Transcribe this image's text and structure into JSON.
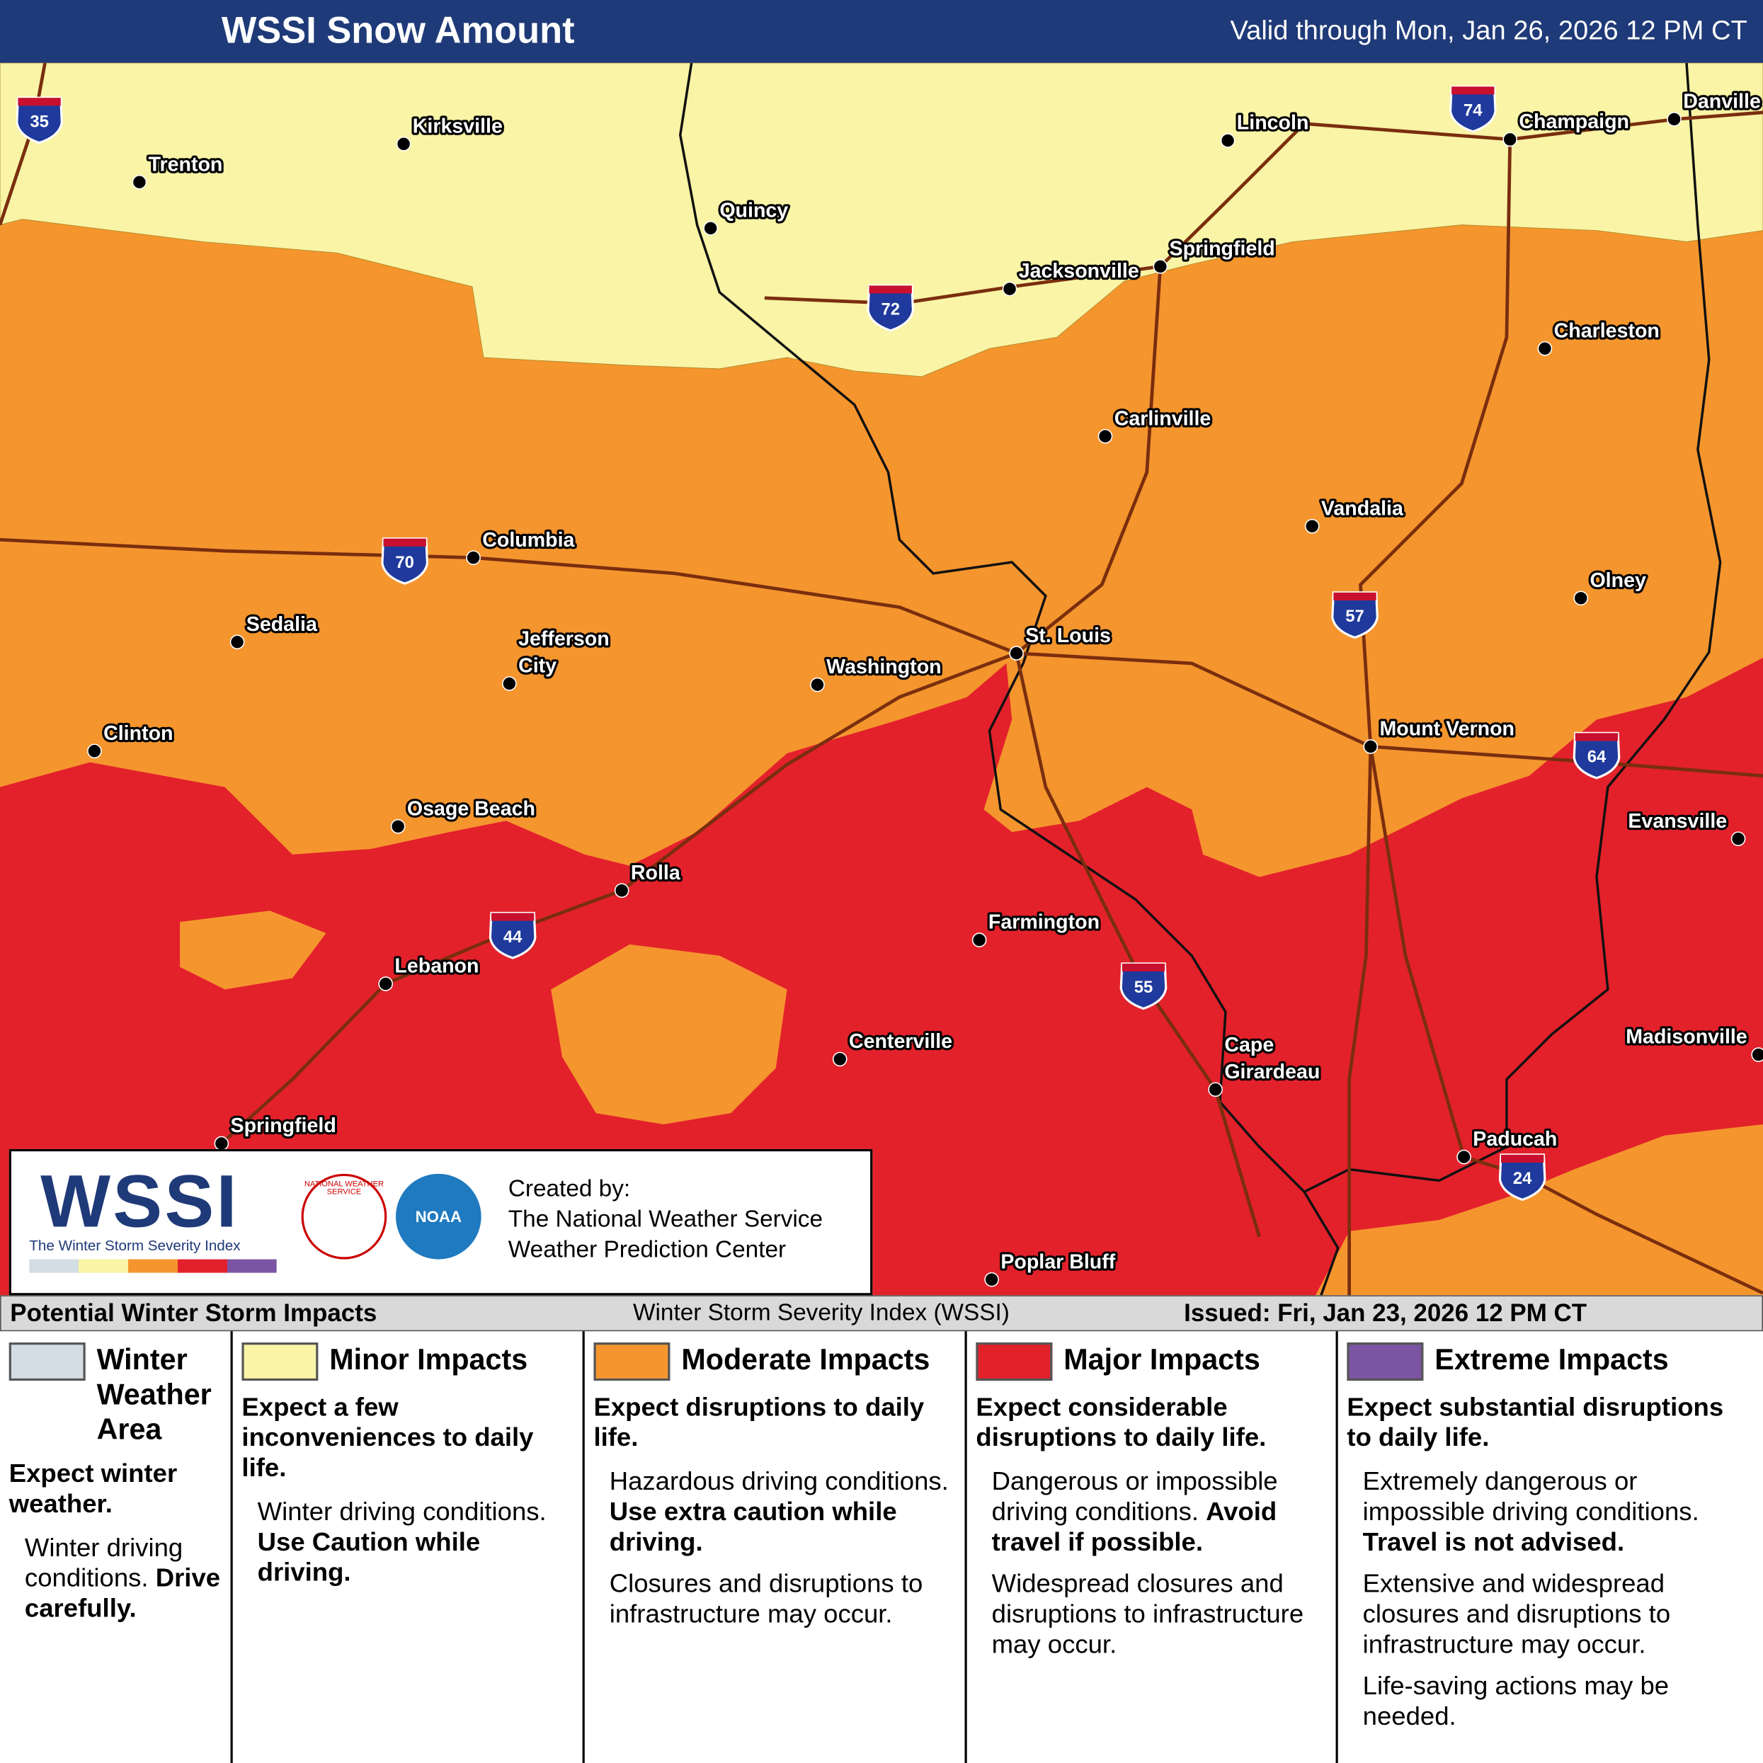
{
  "header": {
    "title": "WSSI Snow Amount",
    "valid": "Valid through Mon, Jan 26, 2026 12 PM CT"
  },
  "map": {
    "cities": [
      {
        "name": [
          "Trenton"
        ]
      },
      {
        "name": [
          "Kirksville"
        ]
      },
      {
        "name": [
          "Quincy"
        ]
      },
      {
        "name": [
          "Lincoln"
        ]
      },
      {
        "name": [
          "Champaign"
        ]
      },
      {
        "name": [
          "Danville"
        ]
      },
      {
        "name": [
          "Jacksonville"
        ]
      },
      {
        "name": [
          "Springfield"
        ]
      },
      {
        "name": [
          "Charleston"
        ]
      },
      {
        "name": [
          "Carlinville"
        ]
      },
      {
        "name": [
          "Vandalia"
        ]
      },
      {
        "name": [
          "Columbia"
        ]
      },
      {
        "name": [
          "Olney"
        ]
      },
      {
        "name": [
          "Sedalia"
        ]
      },
      {
        "name": [
          "Jefferson",
          "City"
        ]
      },
      {
        "name": [
          "St. Louis"
        ]
      },
      {
        "name": [
          "Washington"
        ]
      },
      {
        "name": [
          "Mount Vernon"
        ]
      },
      {
        "name": [
          "Clinton"
        ]
      },
      {
        "name": [
          "Evansville"
        ]
      },
      {
        "name": [
          "Osage Beach"
        ]
      },
      {
        "name": [
          "Rolla"
        ]
      },
      {
        "name": [
          "Farmington"
        ]
      },
      {
        "name": [
          "Lebanon"
        ]
      },
      {
        "name": [
          "Centerville"
        ]
      },
      {
        "name": [
          "Madisonville"
        ]
      },
      {
        "name": [
          "Cape",
          "Girardeau"
        ]
      },
      {
        "name": [
          "Paducah"
        ]
      },
      {
        "name": [
          "Springfield"
        ]
      },
      {
        "name": [
          "Poplar Bluff"
        ]
      }
    ],
    "interstates": [
      "35",
      "74",
      "72",
      "70",
      "57",
      "64",
      "44",
      "55",
      "24"
    ]
  },
  "credit": {
    "logo": "WSSI",
    "logo_subtitle": "The Winter Storm Severity Index",
    "nws": "NATIONAL WEATHER SERVICE",
    "noaa": "NOAA",
    "created_by": "Created by:",
    "line1": "The National Weather Service",
    "line2": "Weather Prediction Center"
  },
  "footer": {
    "title": "Potential Winter Storm Impacts",
    "center": "Winter Storm Severity Index (WSSI)",
    "issued": "Issued: Fri, Jan 23, 2026 12 PM CT"
  },
  "legend": [
    {
      "label": "Winter Weather Area",
      "color": "#d3dde3",
      "summary": "Expect winter weather.",
      "bullets": [
        {
          "text": "Winter driving conditions.",
          "bold": "Drive carefully."
        }
      ]
    },
    {
      "label": "Minor Impacts",
      "color": "#f9f4a6",
      "summary": "Expect a few inconveniences to daily life.",
      "bullets": [
        {
          "text": "Winter driving conditions.",
          "bold": "Use Caution while driving."
        }
      ]
    },
    {
      "label": "Moderate Impacts",
      "color": "#f5952e",
      "summary": "Expect disruptions to daily life.",
      "bullets": [
        {
          "text": "Hazardous driving conditions.",
          "bold": "Use extra caution while driving."
        },
        {
          "text": "Closures and disruptions to infrastructure may occur."
        }
      ]
    },
    {
      "label": "Major Impacts",
      "color": "#e3212b",
      "summary": "Expect considerable disruptions to daily life.",
      "bullets": [
        {
          "text": "Dangerous or impossible driving conditions.",
          "bold": "Avoid travel if possible."
        },
        {
          "text": "Widespread closures and disruptions to infrastructure may occur."
        }
      ]
    },
    {
      "label": "Extreme Impacts",
      "color": "#7b55a3",
      "summary": "Expect substantial disruptions to daily life.",
      "bullets": [
        {
          "text": "Extremely dangerous or impossible driving conditions.",
          "bold": "Travel is not advised."
        },
        {
          "text": "Extensive and widespread closures and disruptions to infrastructure may occur."
        },
        {
          "text": "Life-saving actions may be needed."
        }
      ]
    }
  ]
}
